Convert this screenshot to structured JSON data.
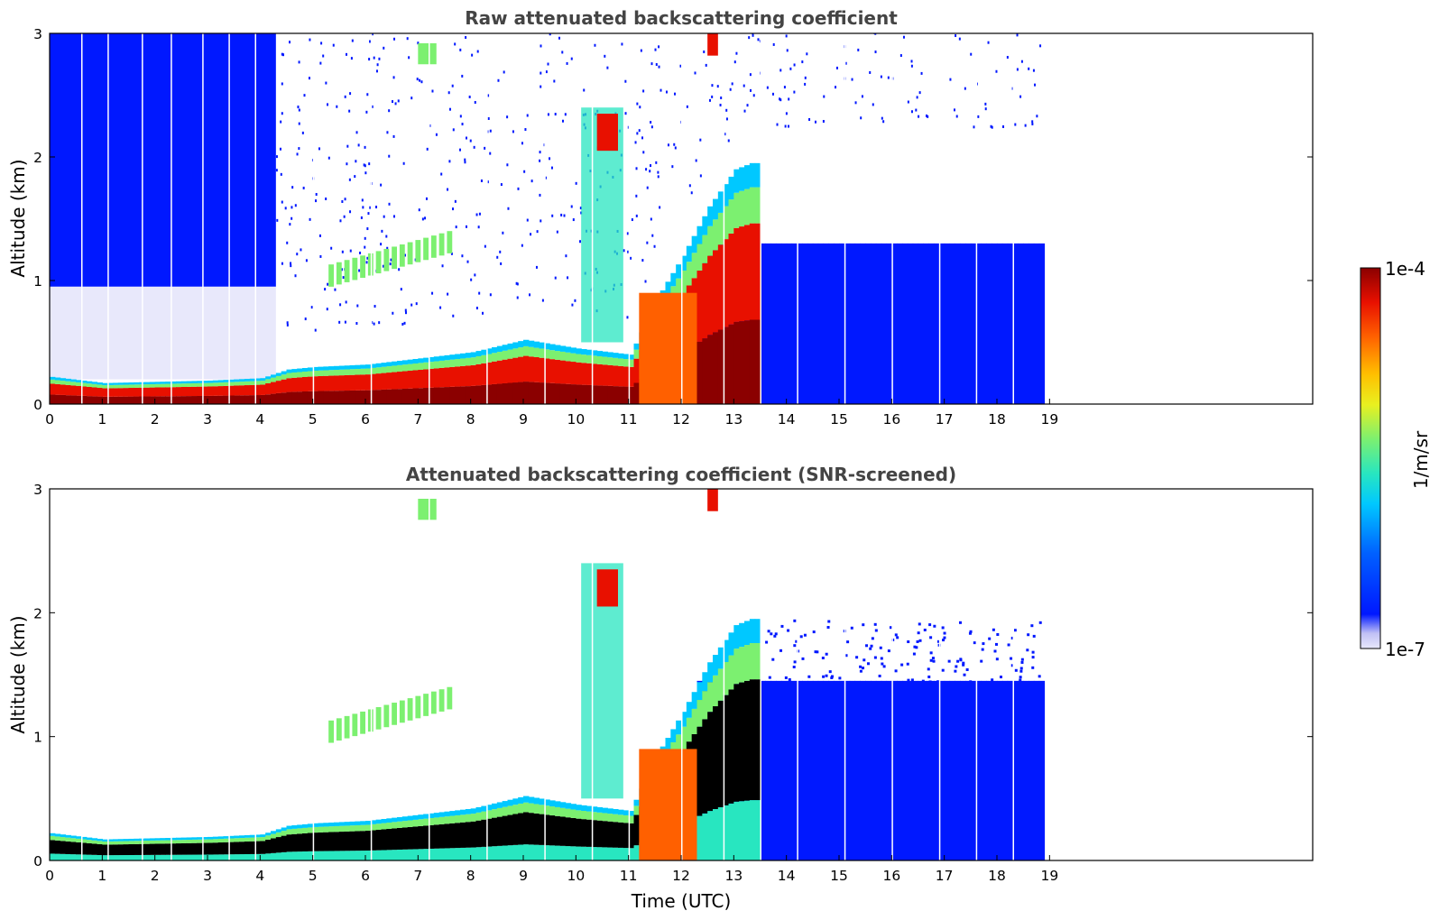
{
  "figure": {
    "colormap": [
      "#e8e8fb",
      "#c0c0f5",
      "#0018ff",
      "#0060ff",
      "#00c8ff",
      "#28e6c0",
      "#7cf070",
      "#e8f020",
      "#ffc000",
      "#ff6000",
      "#e81000",
      "#8b0000"
    ],
    "colorbar": {
      "top_label": "1e-4",
      "bottom_label": "1e-7",
      "unit_label": "1/m/sr"
    }
  },
  "chart_data": [
    {
      "type": "heatmap",
      "title": "Raw attenuated backscattering coefficient",
      "xlabel": "",
      "ylabel": "Altitude (km)",
      "xlim": [
        0,
        24
      ],
      "ylim": [
        0,
        3
      ],
      "xticks": [
        0,
        1,
        2,
        3,
        4,
        5,
        6,
        7,
        8,
        9,
        10,
        11,
        12,
        13,
        14,
        15,
        16,
        17,
        18,
        19
      ],
      "yticks": [
        0,
        1,
        2,
        3
      ],
      "data_end_hour": 18.83,
      "boundary_layer_top_km": [
        [
          0,
          0.22
        ],
        [
          1,
          0.17
        ],
        [
          2,
          0.18
        ],
        [
          3,
          0.19
        ],
        [
          4,
          0.21
        ],
        [
          4.5,
          0.28
        ],
        [
          5,
          0.3
        ],
        [
          6,
          0.32
        ],
        [
          7,
          0.37
        ],
        [
          8,
          0.42
        ],
        [
          9,
          0.52
        ],
        [
          10,
          0.45
        ],
        [
          11,
          0.4
        ],
        [
          11.5,
          0.85
        ],
        [
          12,
          1.2
        ],
        [
          12.5,
          1.6
        ],
        [
          13,
          1.9
        ],
        [
          13.3,
          1.95
        ]
      ],
      "features": [
        "Persistent aerosol layer below ~0.2 km (00–04 UTC)",
        "Deep blue region 0.9–3 km (00–04 UTC)",
        "Growing boundary layer after 04 UTC",
        "Elevated aerosol/cloud near 10–11 UTC up to ~2.5 km",
        "Blue background below ~1.3 km after 12.5 UTC"
      ]
    },
    {
      "type": "heatmap",
      "title": "Attenuated backscattering coefficient (SNR-screened)",
      "xlabel": "Time (UTC)",
      "ylabel": "Altitude (km)",
      "xlim": [
        0,
        24
      ],
      "ylim": [
        0,
        3
      ],
      "xticks": [
        0,
        1,
        2,
        3,
        4,
        5,
        6,
        7,
        8,
        9,
        10,
        11,
        12,
        13,
        14,
        15,
        16,
        17,
        18,
        19
      ],
      "yticks": [
        0,
        1,
        2,
        3
      ],
      "data_end_hour": 18.83,
      "boundary_layer_top_km": [
        [
          0,
          0.22
        ],
        [
          1,
          0.17
        ],
        [
          2,
          0.18
        ],
        [
          3,
          0.19
        ],
        [
          4,
          0.21
        ],
        [
          4.5,
          0.28
        ],
        [
          5,
          0.3
        ],
        [
          6,
          0.32
        ],
        [
          7,
          0.37
        ],
        [
          8,
          0.42
        ],
        [
          9,
          0.52
        ],
        [
          10,
          0.45
        ],
        [
          11,
          0.4
        ],
        [
          11.5,
          0.85
        ],
        [
          12,
          1.2
        ],
        [
          12.5,
          1.6
        ],
        [
          13,
          1.9
        ],
        [
          13.3,
          1.95
        ]
      ],
      "features": [
        "Noise screened out above the boundary layer",
        "Saturated (black) core inside the boundary layer",
        "Blue layer below ~1.5 km after 13 UTC"
      ]
    }
  ]
}
